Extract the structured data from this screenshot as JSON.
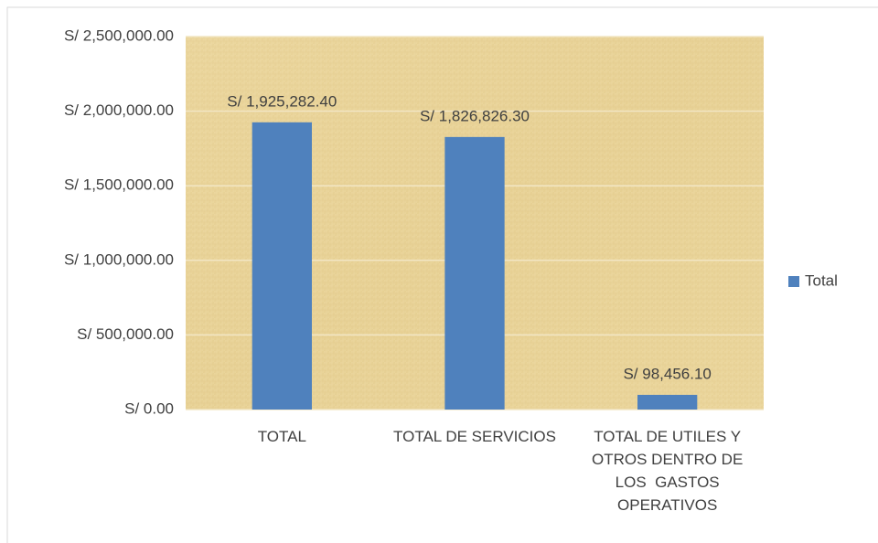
{
  "chart_data": {
    "type": "bar",
    "categories": [
      "TOTAL",
      "TOTAL DE SERVICIOS",
      "TOTAL DE UTILES Y OTROS DENTRO DE LOS  GASTOS OPERATIVOS"
    ],
    "series": [
      {
        "name": "Total",
        "color": "#4f81bd",
        "values": [
          1925282.4,
          1826826.3,
          98456.1
        ],
        "value_labels": [
          "S/ 1,925,282.40",
          "S/ 1,826,826.30",
          "S/ 98,456.10"
        ]
      }
    ],
    "ylim": [
      0,
      2500000
    ],
    "yticks": [
      {
        "value": 0,
        "label": "S/ 0.00"
      },
      {
        "value": 500000,
        "label": "S/ 500,000.00"
      },
      {
        "value": 1000000,
        "label": "S/ 1,000,000.00"
      },
      {
        "value": 1500000,
        "label": "S/ 1,500,000.00"
      },
      {
        "value": 2000000,
        "label": "S/ 2,000,000.00"
      },
      {
        "value": 2500000,
        "label": "S/ 2,500,000.00"
      }
    ],
    "grid": true,
    "legend": "right"
  }
}
